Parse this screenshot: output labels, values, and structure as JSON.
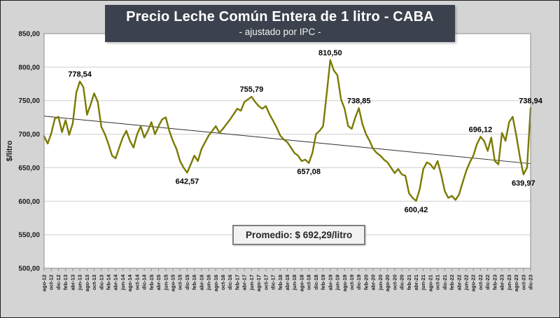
{
  "title": {
    "main": "Precio Leche Común Entera de 1 litro - CABA",
    "subtitle": "- ajustado por IPC -"
  },
  "average_box": {
    "text": "Promedio: $ 692,29/litro"
  },
  "y_axis": {
    "label": "$/litro"
  },
  "colors": {
    "line": "#7a7a00",
    "trend": "#2f2f2f",
    "grid": "#cfcfcf",
    "plot_border": "#8c8c8c",
    "plot_bg": "#ffffff",
    "page_bg": "#d4d4d4",
    "title_bg": "#3b424e",
    "text": "#1a1a1a"
  },
  "chart_data": {
    "type": "line",
    "series_name": "Precio leche común entera ajustado por IPC ($/litro)",
    "ylim": [
      500,
      850
    ],
    "y_ticks": [
      850,
      800,
      750,
      700,
      650,
      600,
      550,
      500
    ],
    "y_tick_labels": [
      "850,00",
      "800,00",
      "750,00",
      "700,00",
      "650,00",
      "600,00",
      "550,00",
      "500,00"
    ],
    "grid": "horizontal",
    "legend": "none",
    "x_tick_labels": [
      "ago-12",
      "oct-12",
      "dic-12",
      "feb-13",
      "abr-13",
      "jun-13",
      "ago-13",
      "oct-13",
      "dic-13",
      "feb-14",
      "abr-14",
      "jun-14",
      "ago-14",
      "oct-14",
      "dic-14",
      "feb-15",
      "abr-15",
      "jun-15",
      "ago-15",
      "oct-15",
      "dic-15",
      "feb-16",
      "abr-16",
      "jun-16",
      "ago-16",
      "oct-16",
      "dic-16",
      "feb-17",
      "abr-17",
      "jun-17",
      "ago-17",
      "oct-17",
      "dic-17",
      "feb-18",
      "abr-18",
      "jun-18",
      "ago-18",
      "oct-18",
      "dic-18",
      "feb-19",
      "abr-19",
      "jun-19",
      "ago-19",
      "oct-19",
      "dic-19",
      "feb-20",
      "abr-20",
      "jun-20",
      "ago-20",
      "oct-20",
      "dic-20",
      "feb-21",
      "abr-21",
      "jun-21",
      "ago-21",
      "oct-21",
      "dic-21",
      "feb-22",
      "abr-22",
      "jun-22",
      "ago-22",
      "oct-22",
      "dic-22",
      "feb-23",
      "abr-23",
      "jun-23",
      "ago-23",
      "oct-23",
      "dic-23"
    ],
    "values": [
      697,
      686,
      701,
      723,
      726,
      703,
      721,
      699,
      716,
      762,
      778.54,
      770,
      729,
      744,
      761,
      748,
      711,
      700,
      685,
      668,
      664,
      680,
      695,
      705,
      690,
      680,
      700,
      712,
      695,
      705,
      718,
      700,
      712,
      722,
      725,
      705,
      690,
      678,
      660,
      650,
      642.57,
      655,
      668,
      660,
      678,
      688,
      698,
      705,
      712,
      702,
      708,
      715,
      722,
      730,
      738,
      735,
      748,
      752,
      755.79,
      748,
      742,
      738,
      742,
      730,
      720,
      710,
      698,
      692,
      688,
      680,
      672,
      668,
      660,
      662,
      657.08,
      672,
      700,
      705,
      712,
      760,
      810.5,
      795,
      788,
      752,
      738,
      712,
      708,
      725,
      738.85,
      715,
      700,
      690,
      678,
      672,
      668,
      662,
      658,
      650,
      642,
      648,
      640,
      638,
      612,
      605,
      600.42,
      618,
      648,
      658,
      655,
      648,
      660,
      640,
      615,
      605,
      608,
      602,
      610,
      628,
      645,
      658,
      668,
      685,
      696.12,
      690,
      675,
      695,
      660,
      655,
      702,
      690,
      718,
      726,
      698,
      666,
      639.97,
      650,
      738.94
    ],
    "trend_line": {
      "start_value": 727,
      "end_value": 656
    },
    "point_labels": [
      {
        "index": 10,
        "text": "778,54",
        "pos": "above"
      },
      {
        "index": 40,
        "text": "642,57",
        "pos": "below"
      },
      {
        "index": 58,
        "text": "755,79",
        "pos": "above"
      },
      {
        "index": 74,
        "text": "657,08",
        "pos": "below"
      },
      {
        "index": 80,
        "text": "810,50",
        "pos": "above"
      },
      {
        "index": 88,
        "text": "738,85",
        "pos": "above"
      },
      {
        "index": 104,
        "text": "600,42",
        "pos": "below"
      },
      {
        "index": 122,
        "text": "696,12",
        "pos": "above"
      },
      {
        "index": 134,
        "text": "639,97",
        "pos": "below"
      },
      {
        "index": 136,
        "text": "738,94",
        "pos": "above"
      }
    ]
  }
}
